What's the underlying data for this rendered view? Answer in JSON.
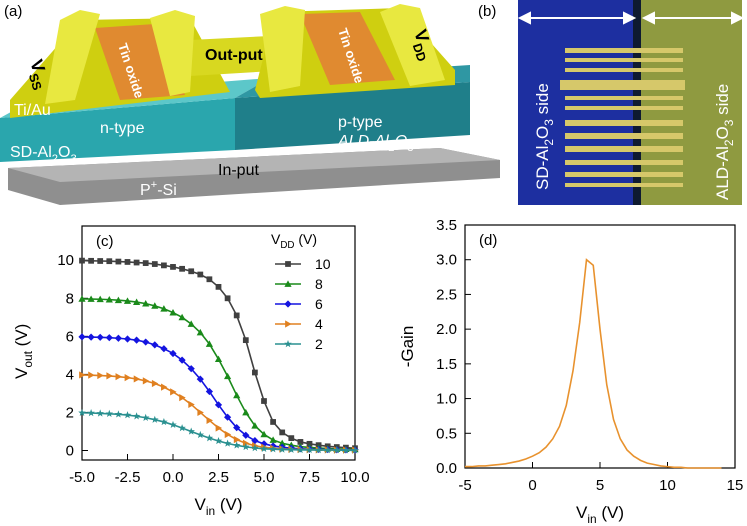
{
  "diagram": {
    "label_a": "(a)",
    "label_b": "(b)",
    "vss": [
      "V",
      "SS"
    ],
    "tin_oxide_left": "Tin oxide",
    "output": "Out-put",
    "tin_oxide_right": "Tin oxide",
    "vdd": [
      "V",
      "DD"
    ],
    "metal": "Ti/Au",
    "n_type": "n-type",
    "p_type": "p-type",
    "sd_layer": [
      "SD-Al",
      "2",
      "O",
      "3"
    ],
    "ald_layer": [
      "ALD-Al",
      "2",
      "O",
      "3"
    ],
    "input": "In-put",
    "substrate": [
      "P",
      "+",
      "-Si"
    ],
    "sd_side": [
      "SD-Al",
      "2",
      "O",
      "3",
      " side"
    ],
    "ald_side": [
      "ALD-Al",
      "2",
      "O",
      "3",
      " side"
    ]
  },
  "chart_data": [
    {
      "type": "line",
      "panel_label": "(c)",
      "xlabel": [
        "V",
        "in",
        " (V)"
      ],
      "ylabel": [
        "V",
        "out",
        " (V)"
      ],
      "legend_title": [
        "V",
        "DD",
        " (V)"
      ],
      "x": [
        -5,
        -4.5,
        -4,
        -3.5,
        -3,
        -2.5,
        -2,
        -1.5,
        -1,
        -0.5,
        0,
        0.5,
        1,
        1.5,
        2,
        2.5,
        3,
        3.5,
        4,
        4.5,
        5,
        5.5,
        6,
        6.5,
        7,
        7.5,
        8,
        8.5,
        9,
        9.5,
        10
      ],
      "series": [
        {
          "name": "10",
          "color": "#404040",
          "marker": "square",
          "values": [
            9.98,
            9.97,
            9.96,
            9.95,
            9.93,
            9.91,
            9.88,
            9.85,
            9.8,
            9.73,
            9.65,
            9.55,
            9.42,
            9.25,
            9.0,
            8.6,
            8.0,
            7.1,
            5.8,
            4.1,
            2.6,
            1.5,
            0.95,
            0.65,
            0.45,
            0.35,
            0.28,
            0.22,
            0.18,
            0.15,
            0.12
          ]
        },
        {
          "name": "8",
          "color": "#1a8a1a",
          "marker": "triangle-up",
          "values": [
            7.97,
            7.96,
            7.95,
            7.93,
            7.9,
            7.86,
            7.8,
            7.72,
            7.6,
            7.45,
            7.25,
            7.0,
            6.65,
            6.2,
            5.6,
            4.8,
            3.9,
            2.9,
            2.0,
            1.3,
            0.85,
            0.55,
            0.38,
            0.28,
            0.2,
            0.16,
            0.13,
            0.1,
            0.08,
            0.07,
            0.06
          ]
        },
        {
          "name": "6",
          "color": "#1414e0",
          "marker": "diamond",
          "values": [
            5.97,
            5.96,
            5.95,
            5.93,
            5.9,
            5.86,
            5.8,
            5.7,
            5.55,
            5.35,
            5.1,
            4.75,
            4.3,
            3.75,
            3.1,
            2.4,
            1.75,
            1.2,
            0.8,
            0.52,
            0.35,
            0.24,
            0.17,
            0.12,
            0.09,
            0.07,
            0.06,
            0.05,
            0.04,
            0.03,
            0.03
          ]
        },
        {
          "name": "4",
          "color": "#e08020",
          "marker": "triangle-right",
          "values": [
            3.97,
            3.96,
            3.94,
            3.92,
            3.88,
            3.83,
            3.76,
            3.66,
            3.52,
            3.33,
            3.08,
            2.78,
            2.42,
            2.0,
            1.58,
            1.18,
            0.84,
            0.57,
            0.38,
            0.25,
            0.17,
            0.12,
            0.08,
            0.06,
            0.05,
            0.04,
            0.03,
            0.03,
            0.02,
            0.02,
            0.02
          ]
        },
        {
          "name": "2",
          "color": "#2a9090",
          "marker": "star",
          "values": [
            1.98,
            1.97,
            1.95,
            1.93,
            1.9,
            1.86,
            1.8,
            1.72,
            1.62,
            1.5,
            1.35,
            1.18,
            1.0,
            0.82,
            0.65,
            0.5,
            0.37,
            0.27,
            0.19,
            0.13,
            0.09,
            0.07,
            0.05,
            0.04,
            0.03,
            0.03,
            0.02,
            0.02,
            0.02,
            0.01,
            0.01
          ]
        }
      ],
      "xlim": [
        -5,
        10
      ],
      "ylim": [
        -0.5,
        11.8
      ],
      "xticks": [
        {
          "value": -5,
          "label": "-5.0"
        },
        -2.5,
        {
          "value": 0,
          "label": "0.0"
        },
        2.5,
        {
          "value": 5,
          "label": "5.0"
        },
        7.5,
        {
          "value": 10,
          "label": "10.0"
        }
      ],
      "yticks": [
        0,
        2,
        4,
        6,
        8,
        10
      ]
    },
    {
      "type": "line",
      "panel_label": "(d)",
      "xlabel": [
        "V",
        "in",
        " (V)"
      ],
      "ylabel": "-Gain",
      "x": [
        -5,
        -4.5,
        -4,
        -3.5,
        -3,
        -2.5,
        -2,
        -1.5,
        -1,
        -0.5,
        0,
        0.5,
        1,
        1.5,
        2,
        2.5,
        3,
        3.5,
        4,
        4.5,
        5,
        5.5,
        6,
        6.5,
        7,
        7.5,
        8,
        8.5,
        9,
        9.5,
        10,
        10.5,
        11,
        11.5,
        12,
        12.5,
        13,
        13.5,
        14
      ],
      "series": [
        {
          "color": "#e8922e",
          "values": [
            0.02,
            0.02,
            0.03,
            0.03,
            0.04,
            0.05,
            0.06,
            0.08,
            0.1,
            0.13,
            0.17,
            0.22,
            0.3,
            0.42,
            0.6,
            0.9,
            1.4,
            2.1,
            3.0,
            2.92,
            2.0,
            1.2,
            0.7,
            0.42,
            0.26,
            0.17,
            0.11,
            0.07,
            0.05,
            0.03,
            0.02,
            0.01,
            0.01,
            0,
            0,
            0,
            0,
            0,
            0
          ]
        }
      ],
      "xlim": [
        -5,
        15
      ],
      "ylim": [
        0,
        3.5
      ],
      "xticks": [
        -5,
        0,
        5,
        10,
        15
      ],
      "yticks": [
        {
          "value": 0,
          "label": "0.0"
        },
        {
          "value": 0.5,
          "label": "0.5"
        },
        {
          "value": 1,
          "label": "1.0"
        },
        {
          "value": 1.5,
          "label": "1.5"
        },
        {
          "value": 2,
          "label": "2.0"
        },
        {
          "value": 2.5,
          "label": "2.5"
        },
        {
          "value": 3,
          "label": "3.0"
        },
        {
          "value": 3.5,
          "label": "3.5"
        }
      ]
    }
  ]
}
